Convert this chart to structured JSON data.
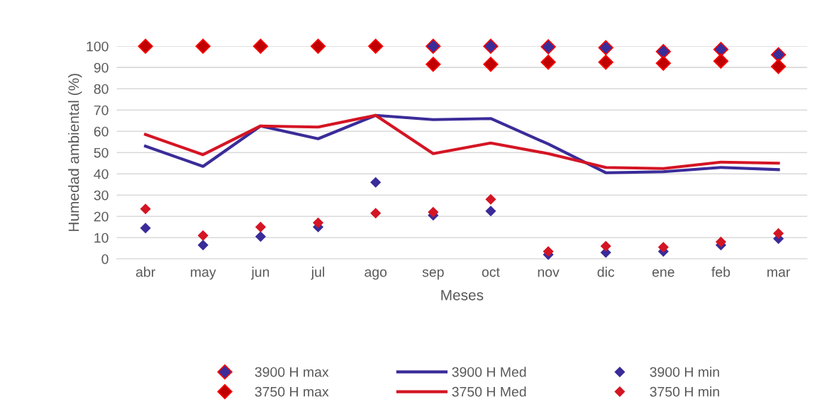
{
  "chart_data": {
    "type": "line",
    "xlabel": "Meses",
    "ylabel": "Humedad ambiental (%)",
    "categories": [
      "abr",
      "may",
      "jun",
      "jul",
      "ago",
      "sep",
      "oct",
      "nov",
      "dic",
      "ene",
      "feb",
      "mar"
    ],
    "ylim": [
      0,
      100
    ],
    "yticks": [
      0,
      10,
      20,
      30,
      40,
      50,
      60,
      70,
      80,
      90,
      100
    ],
    "grid": "y",
    "legend": "bottom",
    "series": [
      {
        "name": "3900 H max",
        "type": "scatter",
        "marker": "diamond",
        "color": "#3a2c99",
        "values": [
          null,
          null,
          null,
          null,
          null,
          100,
          100,
          99.7,
          99.3,
          97.5,
          98.5,
          96
        ]
      },
      {
        "name": "3900 H Med",
        "marker": "none",
        "color": "#3a2c99",
        "values": [
          53,
          43.5,
          62.5,
          56.5,
          67.5,
          65.5,
          66,
          54,
          40.5,
          41,
          43,
          42
        ]
      },
      {
        "name": "3900 H min",
        "type": "scatter",
        "marker": "diamond",
        "color": "#3a2c99",
        "values": [
          14.5,
          6.5,
          10.5,
          15,
          36,
          20.5,
          22.5,
          2,
          3,
          3.5,
          6.5,
          9.5
        ]
      },
      {
        "name": "3750 H max",
        "type": "scatter",
        "marker": "diamond",
        "color": "#c00000",
        "values": [
          100,
          100,
          100,
          100,
          100,
          91.5,
          91.5,
          92.5,
          92.5,
          92,
          93,
          90.5
        ]
      },
      {
        "name": "3750 H Med",
        "marker": "none",
        "color": "#d41524",
        "values": [
          58.5,
          49,
          62.5,
          62,
          67.5,
          49.5,
          54.5,
          49.5,
          43,
          42.5,
          45.5,
          45
        ]
      },
      {
        "name": "3750 H min",
        "type": "scatter",
        "marker": "diamond",
        "color": "#d41524",
        "values": [
          23.5,
          11,
          15,
          17,
          21.5,
          22,
          28,
          3.5,
          6,
          5.5,
          8,
          12
        ]
      }
    ]
  }
}
